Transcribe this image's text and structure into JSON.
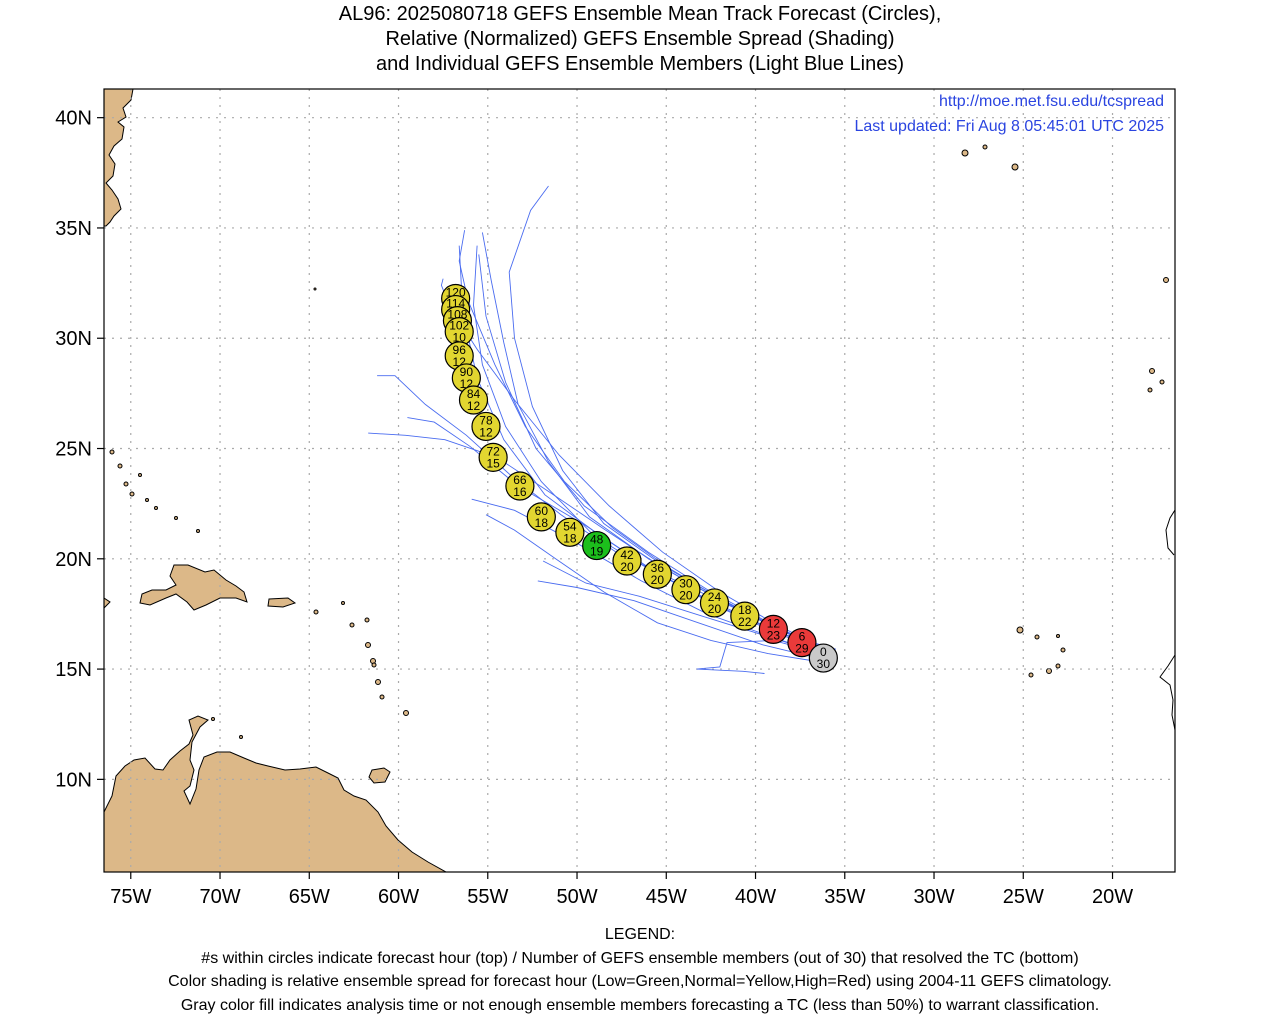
{
  "title": {
    "line1": "AL96: 2025080718 GEFS Ensemble Mean Track Forecast (Circles),",
    "line2": "Relative (Normalized) GEFS Ensemble Spread (Shading)",
    "line3": "and Individual GEFS Ensemble Members (Light Blue Lines)"
  },
  "credit": {
    "url": "http://moe.met.fsu.edu/tcspread",
    "updated": "Last updated: Fri Aug 8 05:45:01 UTC 2025"
  },
  "legend": {
    "heading": "LEGEND:",
    "line1": "#s within circles indicate forecast hour (top) / Number of GEFS ensemble members (out of 30) that resolved the TC (bottom)",
    "line2": "Color shading is relative ensemble spread for forecast hour (Low=Green,Normal=Yellow,High=Red) using 2004-11 GEFS climatology.",
    "line3": "Gray color fill indicates analysis time or not enough ensemble members forecasting a TC (less than 50%) to warrant classification."
  },
  "colors": {
    "low": "#1cbf1c",
    "normal": "#e2d630",
    "high": "#ea3a3a",
    "gray": "#c9c9c9",
    "land": "#dcb888",
    "member_track": "#4a6cf0",
    "credit_text": "#2a44e0"
  },
  "chart_data": {
    "type": "scatter",
    "xlim": [
      -76.5,
      -16.5
    ],
    "ylim": [
      5.8,
      41.3
    ],
    "x_ticks": [
      -75,
      -70,
      -65,
      -60,
      -55,
      -50,
      -45,
      -40,
      -35,
      -30,
      -25,
      -20
    ],
    "x_tick_labels": [
      "75W",
      "70W",
      "65W",
      "60W",
      "55W",
      "50W",
      "45W",
      "40W",
      "35W",
      "30W",
      "25W",
      "20W"
    ],
    "y_ticks": [
      10,
      15,
      20,
      25,
      30,
      35,
      40
    ],
    "y_tick_labels": [
      "10N",
      "15N",
      "20N",
      "25N",
      "30N",
      "35N",
      "40N"
    ],
    "grid": true,
    "mean_track": [
      {
        "hour": "120",
        "members": "10",
        "lon": -56.8,
        "lat": 31.8,
        "spread": "normal"
      },
      {
        "hour": "114",
        "members": "10",
        "lon": -56.8,
        "lat": 31.3,
        "spread": "normal"
      },
      {
        "hour": "108",
        "members": "10",
        "lon": -56.7,
        "lat": 30.8,
        "spread": "normal"
      },
      {
        "hour": "102",
        "members": "10",
        "lon": -56.6,
        "lat": 30.3,
        "spread": "normal"
      },
      {
        "hour": "96",
        "members": "12",
        "lon": -56.6,
        "lat": 29.2,
        "spread": "normal"
      },
      {
        "hour": "90",
        "members": "12",
        "lon": -56.2,
        "lat": 28.2,
        "spread": "normal"
      },
      {
        "hour": "84",
        "members": "12",
        "lon": -55.8,
        "lat": 27.2,
        "spread": "normal"
      },
      {
        "hour": "78",
        "members": "12",
        "lon": -55.1,
        "lat": 26.0,
        "spread": "normal"
      },
      {
        "hour": "72",
        "members": "15",
        "lon": -54.7,
        "lat": 24.6,
        "spread": "normal"
      },
      {
        "hour": "66",
        "members": "16",
        "lon": -53.2,
        "lat": 23.3,
        "spread": "normal"
      },
      {
        "hour": "60",
        "members": "18",
        "lon": -52.0,
        "lat": 21.9,
        "spread": "normal"
      },
      {
        "hour": "54",
        "members": "18",
        "lon": -50.4,
        "lat": 21.2,
        "spread": "normal"
      },
      {
        "hour": "48",
        "members": "19",
        "lon": -48.9,
        "lat": 20.6,
        "spread": "low"
      },
      {
        "hour": "42",
        "members": "20",
        "lon": -47.2,
        "lat": 19.9,
        "spread": "normal"
      },
      {
        "hour": "36",
        "members": "20",
        "lon": -45.5,
        "lat": 19.3,
        "spread": "normal"
      },
      {
        "hour": "30",
        "members": "20",
        "lon": -43.9,
        "lat": 18.6,
        "spread": "normal"
      },
      {
        "hour": "24",
        "members": "20",
        "lon": -42.3,
        "lat": 18.0,
        "spread": "normal"
      },
      {
        "hour": "18",
        "members": "22",
        "lon": -40.6,
        "lat": 17.4,
        "spread": "normal"
      },
      {
        "hour": "12",
        "members": "23",
        "lon": -39.0,
        "lat": 16.8,
        "spread": "high"
      },
      {
        "hour": "6",
        "members": "29",
        "lon": -37.4,
        "lat": 16.2,
        "spread": "high"
      },
      {
        "hour": "0",
        "members": "30",
        "lon": -36.2,
        "lat": 15.5,
        "spread": "gray"
      }
    ],
    "member_tracks": [
      [
        [
          -35.5,
          15.9
        ],
        [
          -38.5,
          16.6
        ],
        [
          -42,
          17.9
        ],
        [
          -45.5,
          19.3
        ],
        [
          -49,
          21
        ],
        [
          -52,
          23.5
        ],
        [
          -54,
          26
        ],
        [
          -55.3,
          28.8
        ],
        [
          -55.8,
          31.5
        ],
        [
          -55.6,
          34.2
        ]
      ],
      [
        [
          -35.6,
          15.7
        ],
        [
          -38.6,
          16.8
        ],
        [
          -42,
          18.2
        ],
        [
          -45.2,
          19.7
        ],
        [
          -48.5,
          21.6
        ],
        [
          -50.8,
          24
        ],
        [
          -52.5,
          26.9
        ],
        [
          -53.5,
          30
        ],
        [
          -53.8,
          33
        ],
        [
          -52.6,
          35.8
        ],
        [
          -51.6,
          36.9
        ]
      ],
      [
        [
          -35.7,
          15.8
        ],
        [
          -39,
          16.9
        ],
        [
          -42.6,
          18.4
        ],
        [
          -46,
          20
        ],
        [
          -49.3,
          21.9
        ],
        [
          -51.6,
          24.4
        ],
        [
          -53.3,
          27
        ],
        [
          -54.1,
          29.8
        ],
        [
          -54.8,
          32.6
        ],
        [
          -55.3,
          34.8
        ]
      ],
      [
        [
          -35.8,
          15.6
        ],
        [
          -39,
          17
        ],
        [
          -42.5,
          18.5
        ],
        [
          -46,
          20.3
        ],
        [
          -49.6,
          22.4
        ],
        [
          -52.3,
          25
        ],
        [
          -54,
          28
        ],
        [
          -55.1,
          31
        ],
        [
          -55.5,
          33.8
        ]
      ],
      [
        [
          -35.7,
          15.7
        ],
        [
          -38.8,
          16.7
        ],
        [
          -42.2,
          17.9
        ],
        [
          -45.8,
          19.5
        ],
        [
          -49.5,
          21.5
        ],
        [
          -53.3,
          23.3
        ],
        [
          -56,
          25.1
        ],
        [
          -58,
          26.2
        ],
        [
          -59.5,
          26.4
        ]
      ],
      [
        [
          -35.6,
          15.5
        ],
        [
          -38.9,
          16.4
        ],
        [
          -42.7,
          17.5
        ],
        [
          -46.4,
          19
        ],
        [
          -50.2,
          20.8
        ],
        [
          -53.5,
          22.2
        ],
        [
          -55.9,
          22.7
        ]
      ],
      [
        [
          -35.9,
          15.6
        ],
        [
          -39.4,
          16.5
        ],
        [
          -43,
          17.4
        ],
        [
          -46.5,
          18.3
        ],
        [
          -49.5,
          18.9
        ],
        [
          -51.9,
          19.9
        ]
      ],
      [
        [
          -36,
          15.4
        ],
        [
          -39.6,
          16.1
        ],
        [
          -43.2,
          17.1
        ],
        [
          -46.8,
          18.1
        ],
        [
          -50,
          18.7
        ],
        [
          -52.2,
          19
        ]
      ],
      [
        [
          -36.2,
          15.3
        ],
        [
          -39.3,
          15.7
        ],
        [
          -42.5,
          16.3
        ],
        [
          -45.5,
          17.1
        ],
        [
          -48.5,
          18.5
        ],
        [
          -51.2,
          20
        ],
        [
          -53.5,
          21.3
        ],
        [
          -55.1,
          22
        ]
      ],
      [
        [
          -35.8,
          15.8
        ],
        [
          -38.8,
          16.9
        ],
        [
          -41.8,
          18
        ],
        [
          -44.7,
          19.1
        ],
        [
          -47.8,
          20.3
        ],
        [
          -50.9,
          22
        ],
        [
          -53.6,
          23.7
        ],
        [
          -56.2,
          25.6
        ],
        [
          -58.5,
          27
        ],
        [
          -60.2,
          28.3
        ],
        [
          -61.2,
          28.3
        ]
      ],
      [
        [
          -35.7,
          15.7
        ],
        [
          -38.7,
          16.8
        ],
        [
          -41.8,
          18.1
        ],
        [
          -44.9,
          19.6
        ],
        [
          -48,
          21.4
        ],
        [
          -50.7,
          23.5
        ],
        [
          -52.9,
          26
        ],
        [
          -54.6,
          28.8
        ],
        [
          -56.1,
          31.7
        ],
        [
          -56.6,
          33.5
        ],
        [
          -56.3,
          34.9
        ]
      ],
      [
        [
          -35.8,
          15.8
        ],
        [
          -38.8,
          17
        ],
        [
          -42,
          18.5
        ],
        [
          -45.2,
          20.3
        ],
        [
          -48.2,
          22.4
        ],
        [
          -51,
          24.7
        ],
        [
          -53.5,
          27.2
        ],
        [
          -55.6,
          29.5
        ],
        [
          -57.1,
          31.4
        ],
        [
          -57.6,
          32.4
        ],
        [
          -57.5,
          32.7
        ]
      ],
      [
        [
          -35.7,
          15.7
        ],
        [
          -38.7,
          16.8
        ],
        [
          -41.9,
          18.1
        ],
        [
          -45.2,
          19.6
        ],
        [
          -48.4,
          21.3
        ],
        [
          -51.5,
          23
        ],
        [
          -54.5,
          24.6
        ],
        [
          -57.4,
          25.4
        ],
        [
          -59.6,
          25.6
        ],
        [
          -61.7,
          25.7
        ]
      ],
      [
        [
          -35.8,
          15.6
        ],
        [
          -39,
          16.3
        ],
        [
          -41.6,
          16.2
        ],
        [
          -42,
          15.1
        ],
        [
          -43.3,
          15
        ],
        [
          -40.7,
          14.9
        ],
        [
          -39.5,
          14.8
        ]
      ],
      [
        [
          -35.9,
          15.7
        ],
        [
          -39,
          16.7
        ],
        [
          -42.3,
          17.9
        ],
        [
          -45.6,
          19.4
        ],
        [
          -48.8,
          21.1
        ],
        [
          -51.8,
          22.9
        ],
        [
          -54.1,
          25.4
        ],
        [
          -55.6,
          28.2
        ],
        [
          -56.4,
          31.2
        ],
        [
          -56.6,
          34.2
        ]
      ]
    ]
  }
}
